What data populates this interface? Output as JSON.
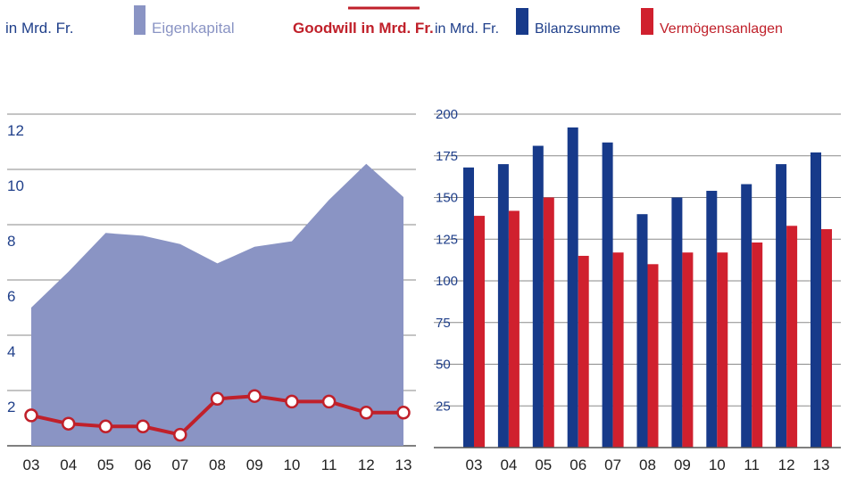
{
  "colors": {
    "area": "#8a94c4",
    "goodwill": "#c0202a",
    "bilanz": "#173a8a",
    "vermoegen": "#d0202e",
    "axis_text": "#1f3f8a"
  },
  "chart_data": [
    {
      "type": "area",
      "unit_label": "in Mrd. Fr.",
      "categories": [
        "03",
        "04",
        "05",
        "06",
        "07",
        "08",
        "09",
        "10",
        "11",
        "12",
        "13"
      ],
      "ylim": [
        0,
        12
      ],
      "yticks": [
        "2",
        "4",
        "6",
        "8",
        "10",
        "12"
      ],
      "series": [
        {
          "name": "Eigenkapital",
          "type": "area",
          "values": [
            5.0,
            6.3,
            7.7,
            7.6,
            7.3,
            6.6,
            7.2,
            7.4,
            8.9,
            10.2,
            9.0
          ]
        },
        {
          "name": "Goodwill in Mrd. Fr.",
          "type": "line",
          "values": [
            1.1,
            0.8,
            0.7,
            0.7,
            0.4,
            1.7,
            1.8,
            1.6,
            1.6,
            1.2,
            1.2
          ]
        }
      ]
    },
    {
      "type": "bar",
      "unit_label": "in Mrd. Fr.",
      "categories": [
        "03",
        "04",
        "05",
        "06",
        "07",
        "08",
        "09",
        "10",
        "11",
        "12",
        "13"
      ],
      "ylim": [
        0,
        200
      ],
      "yticks": [
        "25",
        "50",
        "75",
        "100",
        "125",
        "150",
        "175",
        "200"
      ],
      "series": [
        {
          "name": "Bilanzsumme",
          "values": [
            168,
            170,
            181,
            192,
            183,
            140,
            150,
            154,
            158,
            170,
            177
          ]
        },
        {
          "name": "Vermögensanlagen",
          "values": [
            139,
            142,
            150,
            115,
            117,
            110,
            117,
            117,
            123,
            133,
            131
          ]
        }
      ]
    }
  ]
}
